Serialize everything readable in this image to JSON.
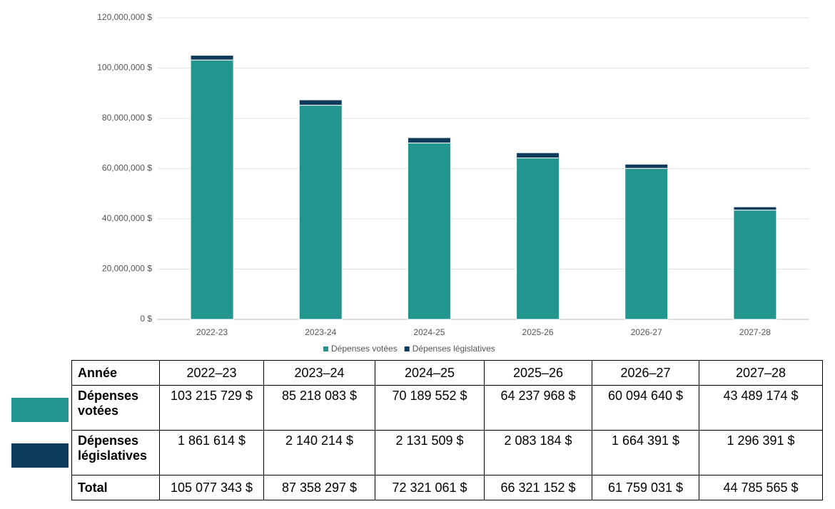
{
  "chart_data": {
    "type": "stacked-bar",
    "categories": [
      "2022-23",
      "2023-24",
      "2024-25",
      "2025-26",
      "2026-27",
      "2027-28"
    ],
    "series": [
      {
        "name": "Dépenses votées",
        "color": "#22958f",
        "values": [
          103215729,
          85218083,
          70189552,
          64237968,
          60094640,
          43489174
        ],
        "value_labels": [
          "103 215 729 $",
          "85 218 083 $",
          "70 189 552 $",
          "64 237 968 $",
          "60 094 640 $",
          "43 489 174 $"
        ]
      },
      {
        "name": "Dépenses législatives",
        "color": "#0e3a5c",
        "values": [
          1861614,
          2140214,
          2131509,
          2083184,
          1664391,
          1296391
        ],
        "value_labels": [
          "1 861 614 $",
          "2 140 214 $",
          "2 131 509 $",
          "2 083 184 $",
          "1 664 391 $",
          "1 296 391 $"
        ]
      }
    ],
    "ylim": [
      0,
      120000000
    ],
    "yticks": [
      {
        "value": 0,
        "label": "0 $"
      },
      {
        "value": 20000000,
        "label": "20,000,000 $"
      },
      {
        "value": 40000000,
        "label": "40,000,000 $"
      },
      {
        "value": 60000000,
        "label": "60,000,000 $"
      },
      {
        "value": 80000000,
        "label": "80,000,000 $"
      },
      {
        "value": 100000000,
        "label": "100,000,000 $"
      },
      {
        "value": 120000000,
        "label": "120,000,000 $"
      }
    ],
    "grid": true
  },
  "table": {
    "columns": [
      "Année",
      "2022–23",
      "2023–24",
      "2024–25",
      "2025–26",
      "2026–27",
      "2027–28"
    ],
    "total_label": "Total",
    "totals": [
      "105 077 343 $",
      "87 358 297 $",
      "72 321 061 $",
      "66 321 152 $",
      "61 759 031 $",
      "44 785 565 $"
    ]
  }
}
